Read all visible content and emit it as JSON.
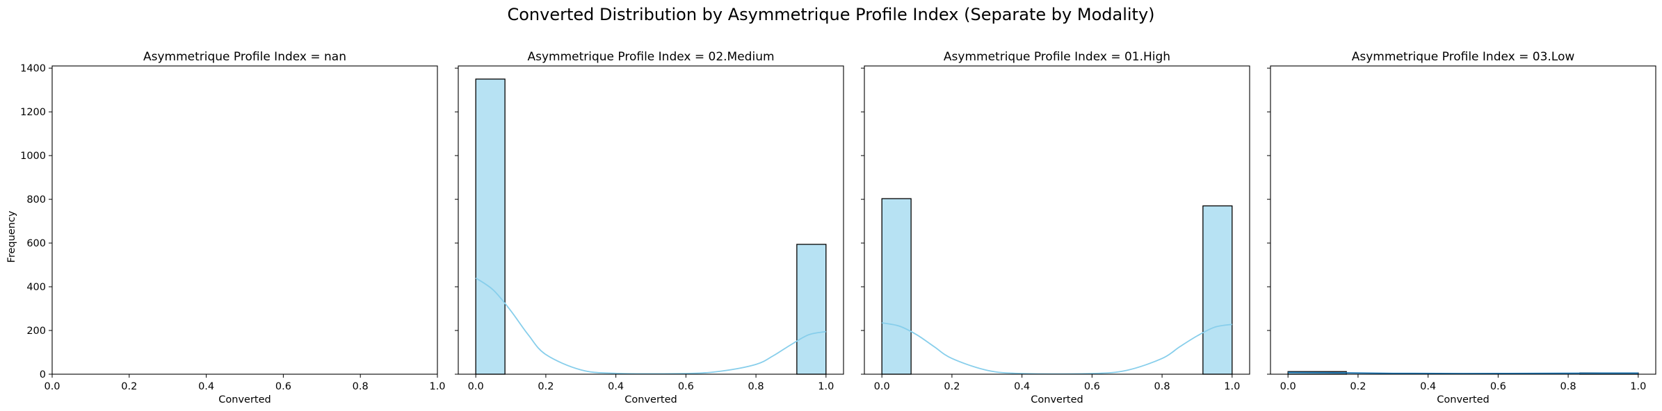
{
  "figure": {
    "title": "Converted Distribution by Asymmetrique Profile Index (Separate by Modality)",
    "ylabel": "Frequency"
  },
  "chart_data": [
    {
      "type": "bar",
      "title": "Asymmetrique Profile Index = nan",
      "xlabel": "Converted",
      "ylabel": "Frequency",
      "xlim": [
        0,
        1
      ],
      "ylim": [
        0,
        1410
      ],
      "xticks": [
        "0.0",
        "0.2",
        "0.4",
        "0.6",
        "0.8",
        "1.0"
      ],
      "yticks": [
        "0",
        "200",
        "400",
        "600",
        "800",
        "1000",
        "1200",
        "1400"
      ],
      "bins": [],
      "kde": []
    },
    {
      "type": "bar",
      "title": "Asymmetrique Profile Index = 02.Medium",
      "xlabel": "Converted",
      "ylabel": "Frequency",
      "xlim": [
        -0.05,
        1.05
      ],
      "ylim": [
        0,
        1410
      ],
      "xticks": [
        "0.0",
        "0.2",
        "0.4",
        "0.6",
        "0.8",
        "1.0"
      ],
      "bins": [
        {
          "x0": 0.0,
          "x1": 0.0833,
          "count": 1350
        },
        {
          "x0": 0.9167,
          "x1": 1.0,
          "count": 594
        }
      ],
      "kde": [
        [
          0.0,
          440
        ],
        [
          0.05,
          385
        ],
        [
          0.1,
          290
        ],
        [
          0.15,
          180
        ],
        [
          0.2,
          90
        ],
        [
          0.3,
          20
        ],
        [
          0.4,
          4
        ],
        [
          0.6,
          3
        ],
        [
          0.7,
          14
        ],
        [
          0.8,
          45
        ],
        [
          0.85,
          85
        ],
        [
          0.9,
          135
        ],
        [
          0.95,
          180
        ],
        [
          1.0,
          195
        ]
      ]
    },
    {
      "type": "bar",
      "title": "Asymmetrique Profile Index = 01.High",
      "xlabel": "Converted",
      "ylabel": "Frequency",
      "xlim": [
        -0.05,
        1.05
      ],
      "ylim": [
        0,
        1410
      ],
      "xticks": [
        "0.0",
        "0.2",
        "0.4",
        "0.6",
        "0.8",
        "1.0"
      ],
      "bins": [
        {
          "x0": 0.0,
          "x1": 0.0833,
          "count": 803
        },
        {
          "x0": 0.9167,
          "x1": 1.0,
          "count": 770
        }
      ],
      "kde": [
        [
          0.0,
          235
        ],
        [
          0.05,
          220
        ],
        [
          0.1,
          180
        ],
        [
          0.15,
          125
        ],
        [
          0.2,
          72
        ],
        [
          0.3,
          18
        ],
        [
          0.4,
          3
        ],
        [
          0.6,
          3
        ],
        [
          0.7,
          18
        ],
        [
          0.8,
          72
        ],
        [
          0.85,
          125
        ],
        [
          0.9,
          175
        ],
        [
          0.95,
          215
        ],
        [
          1.0,
          228
        ]
      ]
    },
    {
      "type": "bar",
      "title": "Asymmetrique Profile Index = 03.Low",
      "xlabel": "Converted",
      "ylabel": "Frequency",
      "xlim": [
        -0.05,
        1.05
      ],
      "ylim": [
        0,
        1410
      ],
      "xticks": [
        "0.0",
        "0.2",
        "0.4",
        "0.6",
        "0.8",
        "1.0"
      ],
      "bins": [
        {
          "x0": 0.0,
          "x1": 0.1667,
          "count": 12
        },
        {
          "x0": 0.8333,
          "x1": 1.0,
          "count": 6
        }
      ],
      "kde": [
        [
          0.0,
          8
        ],
        [
          0.1,
          7
        ],
        [
          0.3,
          4
        ],
        [
          0.5,
          3
        ],
        [
          0.7,
          4
        ],
        [
          0.9,
          5
        ],
        [
          1.0,
          5
        ]
      ]
    }
  ],
  "colors": {
    "bar_fill": "#87ceeb",
    "bar_opacity": "0.6",
    "kde_line": "#87ceeb",
    "low_kde_line": "#1f77b4"
  }
}
